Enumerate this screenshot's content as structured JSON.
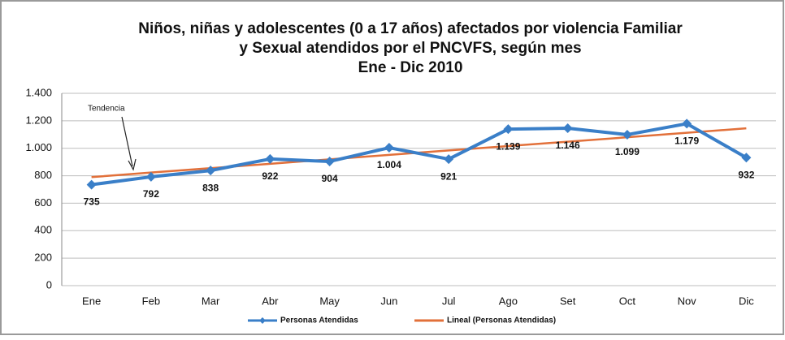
{
  "chart_data": {
    "type": "line",
    "title": [
      "Niños, niñas y adolescentes (0 a 17 años) afectados por violencia Familiar",
      "y Sexual atendidos por el PNCVFS, según mes",
      "Ene - Dic 2010"
    ],
    "categories": [
      "Ene",
      "Feb",
      "Mar",
      "Abr",
      "May",
      "Jun",
      "Jul",
      "Ago",
      "Set",
      "Oct",
      "Nov",
      "Dic"
    ],
    "series": [
      {
        "name": "Personas Atendidas",
        "color": "#3a7fc8",
        "marker": "diamond",
        "values": [
          735,
          792,
          838,
          922,
          904,
          1004,
          921,
          1139,
          1146,
          1099,
          1179,
          932
        ],
        "value_labels": [
          "735",
          "792",
          "838",
          "922",
          "904",
          "1.004",
          "921",
          "1.139",
          "1.146",
          "1.099",
          "1.179",
          "932"
        ]
      },
      {
        "name": "Lineal (Personas Atendidas)",
        "color": "#e2703a",
        "values": [
          790,
          823,
          855,
          887,
          919,
          952,
          984,
          1016,
          1048,
          1080,
          1113,
          1145
        ]
      }
    ],
    "ylim": [
      0,
      1400
    ],
    "yticks": [
      0,
      200,
      400,
      600,
      800,
      {
        "value": 1000,
        "label": "1.000"
      },
      {
        "value": 1200,
        "label": "1.200"
      },
      {
        "value": 1400,
        "label": "1.400"
      }
    ],
    "grid": true,
    "legend": "bottom",
    "annotation": "Tendencia"
  }
}
